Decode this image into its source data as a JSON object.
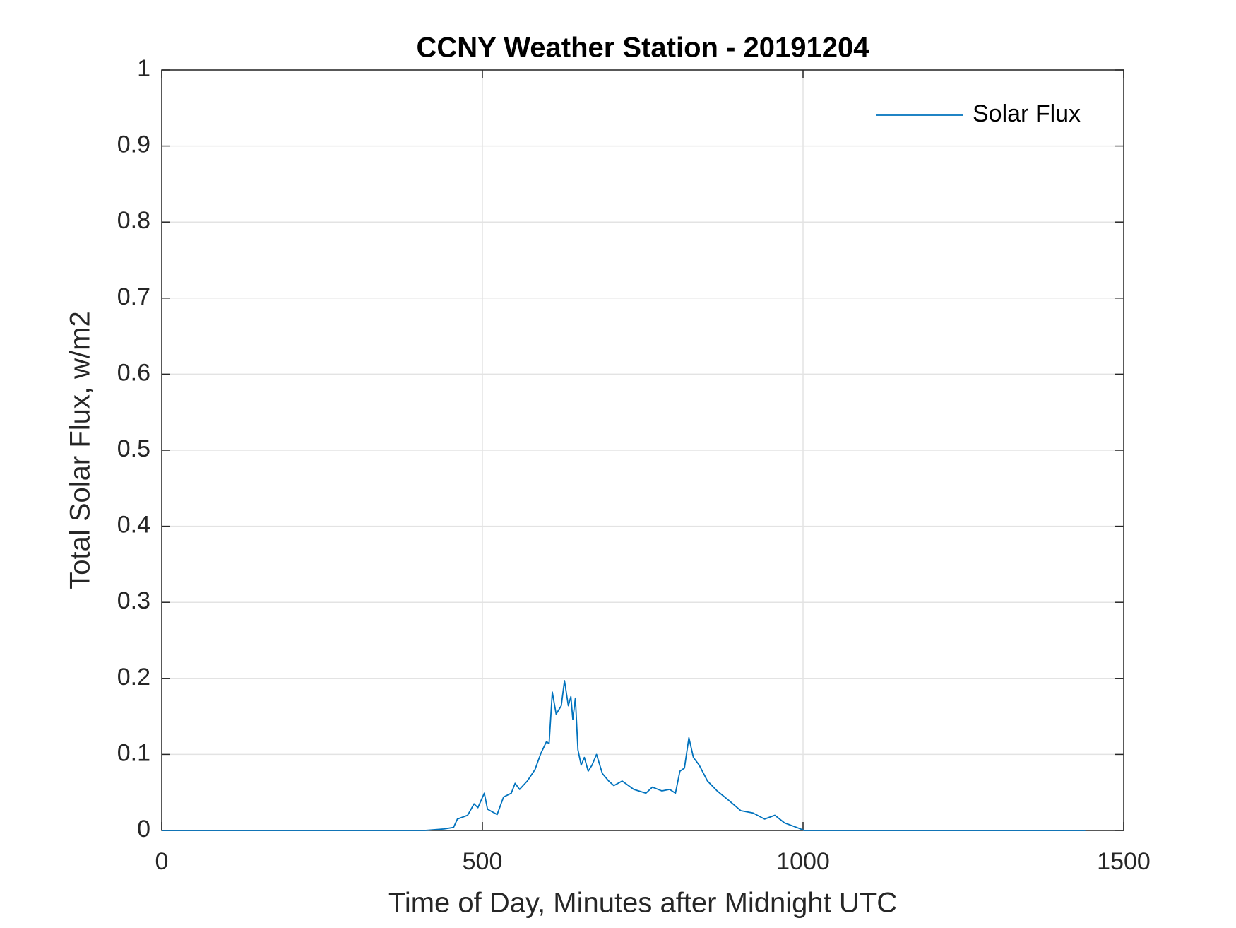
{
  "chart_data": {
    "type": "line",
    "title": "CCNY Weather Station - 20191204",
    "x_label": "Time of Day, Minutes after Midnight UTC",
    "y_label": "Total Solar Flux, w/m2",
    "xlim": [
      0,
      1500
    ],
    "ylim": [
      0,
      1
    ],
    "xticks": [
      0,
      500,
      1000,
      1500
    ],
    "yticks": [
      0,
      0.1,
      0.2,
      0.3,
      0.4,
      0.5,
      0.6,
      0.7,
      0.8,
      0.9,
      1
    ],
    "grid": true,
    "legend": "upper right",
    "x": [
      0,
      410,
      440,
      455,
      461,
      477,
      487,
      493,
      503,
      508,
      523,
      533,
      545,
      551,
      558,
      570,
      582,
      591,
      600,
      604,
      609,
      615,
      623,
      628,
      634,
      638,
      641,
      645,
      649,
      654,
      659,
      665,
      671,
      678,
      687,
      697,
      705,
      718,
      736,
      755,
      765,
      780,
      792,
      801,
      808,
      815,
      822,
      829,
      838,
      851,
      866,
      885,
      903,
      922,
      940,
      956,
      971,
      990,
      1002,
      1440
    ],
    "series": [
      {
        "name": "Solar Flux",
        "color": "#0072bd",
        "values": [
          0,
          0,
          0.002,
          0.004,
          0.015,
          0.02,
          0.035,
          0.03,
          0.049,
          0.028,
          0.021,
          0.044,
          0.049,
          0.062,
          0.054,
          0.065,
          0.08,
          0.101,
          0.117,
          0.114,
          0.182,
          0.153,
          0.164,
          0.197,
          0.164,
          0.176,
          0.146,
          0.174,
          0.106,
          0.086,
          0.096,
          0.078,
          0.086,
          0.1,
          0.075,
          0.065,
          0.059,
          0.065,
          0.054,
          0.049,
          0.057,
          0.052,
          0.054,
          0.049,
          0.078,
          0.082,
          0.122,
          0.096,
          0.086,
          0.065,
          0.052,
          0.039,
          0.026,
          0.023,
          0.015,
          0.02,
          0.01,
          0.004,
          0,
          0
        ]
      }
    ]
  }
}
